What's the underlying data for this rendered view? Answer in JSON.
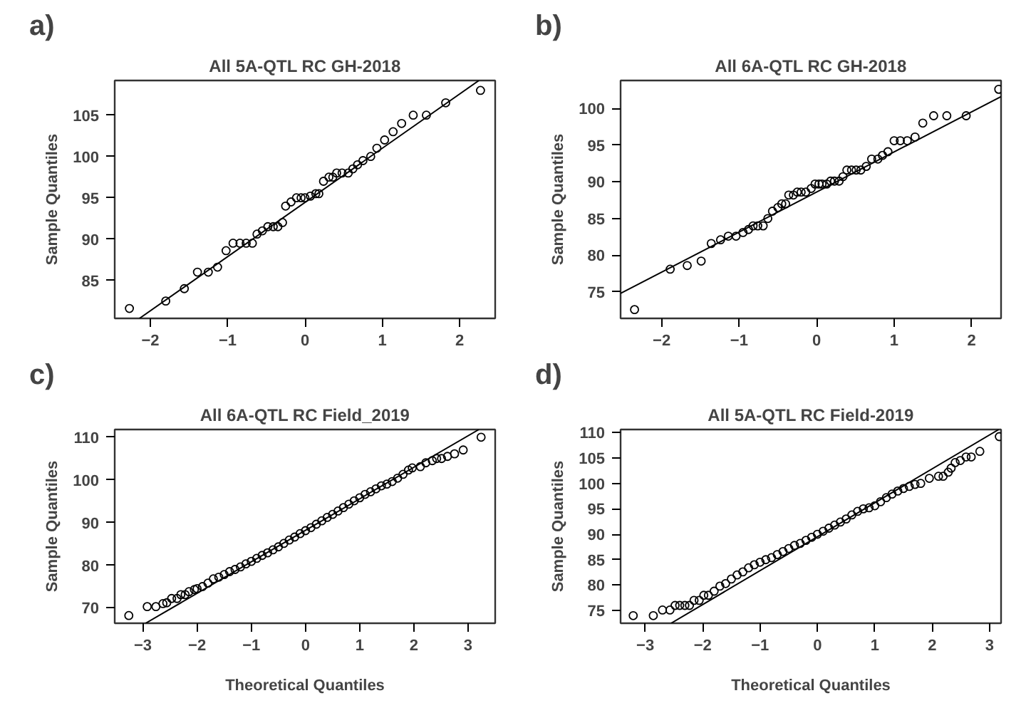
{
  "chart_data": [
    {
      "type": "scatter",
      "title": "All 5A-QTL RC GH-2018",
      "ylabel": "Sample Quantiles",
      "annotations": [
        "a)"
      ],
      "marker": "circle",
      "grid": false,
      "xlim": [
        -2.46,
        2.46
      ],
      "ylim": [
        80.4,
        109.2
      ],
      "xticks": [
        -2,
        -1,
        0,
        1,
        2
      ],
      "yticks": [
        85,
        90,
        95,
        100,
        105
      ],
      "series": [
        {
          "color": "#000000",
          "x": [
            -2.27,
            -1.8,
            -1.56,
            -1.39,
            -1.25,
            -1.13,
            -1.02,
            -0.93,
            -0.84,
            -0.76,
            -0.68,
            -0.62,
            -0.55,
            -0.48,
            -0.41,
            -0.35,
            -0.29,
            -0.25,
            -0.18,
            -0.11,
            -0.05,
            0,
            0.07,
            0.14,
            0.18,
            0.24,
            0.31,
            0.36,
            0.41,
            0.48,
            0.56,
            0.62,
            0.68,
            0.75,
            0.85,
            0.93,
            1.03,
            1.14,
            1.25,
            1.4,
            1.57,
            1.82,
            2.27
          ],
          "values": [
            81.6,
            82.5,
            84,
            86,
            86,
            86.6,
            88.6,
            89.5,
            89.5,
            89.5,
            89.5,
            90.6,
            91,
            91.5,
            91.5,
            91.5,
            92,
            94,
            94.5,
            95,
            95,
            95,
            95.2,
            95.5,
            95.5,
            97,
            97.5,
            97.5,
            98,
            98,
            98,
            98.5,
            99,
            99.5,
            100,
            101,
            102,
            103,
            104,
            105,
            105,
            106.5,
            108
          ]
        },
        {
          "type": "line",
          "marker": "none",
          "color": "#000000",
          "x": [
            -2.14,
            2.25
          ],
          "values": [
            80.4,
            109.2
          ]
        }
      ]
    },
    {
      "type": "scatter",
      "title": "All 6A-QTL RC GH-2018",
      "ylabel": "Sample Quantiles",
      "annotations": [
        "b)"
      ],
      "marker": "circle",
      "grid": false,
      "xlim": [
        -2.53,
        2.38
      ],
      "ylim": [
        71.4,
        103.8
      ],
      "xticks": [
        -2,
        -1,
        0,
        1,
        2
      ],
      "yticks": [
        75,
        80,
        85,
        90,
        95,
        100
      ],
      "series": [
        {
          "color": "#000000",
          "x": [
            -2.35,
            -1.89,
            -1.67,
            -1.49,
            -1.36,
            -1.24,
            -1.14,
            -1.04,
            -0.95,
            -0.88,
            -0.82,
            -0.76,
            -0.69,
            -0.63,
            -0.57,
            -0.5,
            -0.45,
            -0.4,
            -0.36,
            -0.3,
            -0.25,
            -0.2,
            -0.14,
            -0.07,
            -0.02,
            0.03,
            0.07,
            0.13,
            0.18,
            0.23,
            0.29,
            0.34,
            0.39,
            0.45,
            0.51,
            0.57,
            0.64,
            0.71,
            0.79,
            0.85,
            0.92,
            1.0,
            1.08,
            1.17,
            1.27,
            1.37,
            1.51,
            1.68,
            1.93,
            2.35
          ],
          "values": [
            72.6,
            78.1,
            78.6,
            79.2,
            81.6,
            82.1,
            82.6,
            82.6,
            83.1,
            83.5,
            84,
            84,
            84,
            85,
            86,
            86.5,
            87,
            87,
            88.2,
            88.2,
            88.6,
            88.6,
            88.6,
            89.1,
            89.7,
            89.7,
            89.7,
            89.7,
            90.1,
            90.1,
            90.1,
            90.7,
            91.6,
            91.6,
            91.6,
            91.6,
            92.1,
            93.1,
            93.1,
            93.6,
            94.1,
            95.6,
            95.6,
            95.6,
            96.1,
            98,
            99,
            99,
            99,
            102.6
          ]
        },
        {
          "type": "line",
          "marker": "none",
          "color": "#000000",
          "x": [
            -2.53,
            2.38
          ],
          "values": [
            74.8,
            101.6
          ]
        }
      ]
    },
    {
      "type": "scatter",
      "title": "All 6A-QTL RC Field_2019",
      "xlabel": "Theoretical Quantiles",
      "ylabel": "Sample Quantiles",
      "annotations": [
        "c)"
      ],
      "marker": "circle",
      "grid": false,
      "xlim": [
        -3.52,
        3.5
      ],
      "ylim": [
        66.4,
        111.8
      ],
      "xticks": [
        -3,
        -2,
        -1,
        0,
        1,
        2,
        3
      ],
      "yticks": [
        70,
        80,
        90,
        100,
        110
      ],
      "series": [
        {
          "color": "#000000",
          "x": [
            -3.26,
            -2.92,
            -2.76,
            -2.63,
            -2.56,
            -2.47,
            -2.37,
            -2.3,
            -2.22,
            -2.15,
            -2.05,
            -2.0,
            -1.9,
            -1.8,
            -1.7,
            -1.6,
            -1.5,
            -1.4,
            -1.3,
            -1.2,
            -1.1,
            -1.0,
            -0.9,
            -0.8,
            -0.7,
            -0.6,
            -0.5,
            -0.4,
            -0.3,
            -0.2,
            -0.1,
            0,
            0.1,
            0.2,
            0.3,
            0.4,
            0.5,
            0.6,
            0.7,
            0.8,
            0.9,
            1.0,
            1.1,
            1.2,
            1.3,
            1.4,
            1.5,
            1.6,
            1.7,
            1.8,
            1.9,
            1.97,
            2.12,
            2.22,
            2.34,
            2.42,
            2.51,
            2.62,
            2.75,
            2.91,
            3.24
          ],
          "values": [
            68.2,
            70.3,
            70.3,
            71,
            71.2,
            72.2,
            72.2,
            73.1,
            73.1,
            73.8,
            74.3,
            74.5,
            75,
            75.8,
            76.8,
            77.2,
            77.8,
            78.5,
            79,
            79.6,
            80.3,
            80.9,
            81.6,
            82.3,
            82.9,
            83.6,
            84.3,
            85.1,
            85.9,
            86.6,
            87.4,
            88.1,
            88.8,
            89.6,
            90.4,
            91.2,
            91.9,
            92.7,
            93.5,
            94.3,
            95.1,
            95.8,
            96.6,
            97.2,
            97.9,
            98.6,
            99,
            99.6,
            100.4,
            101.3,
            102.3,
            102.8,
            103.1,
            104,
            104.5,
            105,
            105,
            105.5,
            106.1,
            107,
            110
          ]
        },
        {
          "type": "line",
          "marker": "none",
          "color": "#000000",
          "x": [
            -2.95,
            3.2
          ],
          "values": [
            66.4,
            111.8
          ]
        }
      ]
    },
    {
      "type": "scatter",
      "title": "All 5A-QTL RC Field-2019",
      "xlabel": "Theoretical Quantiles",
      "ylabel": "Sample Quantiles",
      "annotations": [
        "d)"
      ],
      "marker": "circle",
      "grid": false,
      "xlim": [
        -3.43,
        3.2
      ],
      "ylim": [
        72.5,
        110.6
      ],
      "xticks": [
        -3,
        -2,
        -1,
        0,
        1,
        2,
        3
      ],
      "yticks": [
        75,
        80,
        85,
        90,
        95,
        100,
        105,
        110
      ],
      "series": [
        {
          "color": "#000000",
          "x": [
            -3.21,
            -2.86,
            -2.7,
            -2.57,
            -2.48,
            -2.4,
            -2.31,
            -2.23,
            -2.15,
            -2.06,
            -1.98,
            -1.9,
            -1.8,
            -1.7,
            -1.6,
            -1.5,
            -1.4,
            -1.3,
            -1.2,
            -1.1,
            -1.0,
            -0.9,
            -0.8,
            -0.7,
            -0.6,
            -0.5,
            -0.4,
            -0.3,
            -0.2,
            -0.1,
            0,
            0.1,
            0.2,
            0.3,
            0.4,
            0.5,
            0.6,
            0.7,
            0.8,
            0.9,
            1.0,
            1.1,
            1.2,
            1.3,
            1.4,
            1.5,
            1.6,
            1.7,
            1.8,
            1.95,
            2.11,
            2.19,
            2.28,
            2.33,
            2.4,
            2.49,
            2.59,
            2.68,
            2.83,
            3.17
          ],
          "values": [
            74,
            74,
            75.1,
            75.1,
            76,
            76,
            76,
            76,
            77,
            77,
            78,
            78,
            78.8,
            79.8,
            80.3,
            81.2,
            82,
            82.6,
            83.4,
            84,
            84.5,
            85,
            85.4,
            86,
            86.6,
            87.2,
            87.8,
            88.2,
            88.8,
            89.4,
            90,
            90.6,
            91.2,
            91.8,
            92.4,
            93,
            93.8,
            94.5,
            95,
            95.2,
            95.6,
            96.4,
            97.2,
            97.9,
            98.5,
            99,
            99.4,
            99.8,
            100,
            101,
            101.4,
            101.4,
            102.2,
            103,
            104.1,
            104.5,
            105.2,
            105.2,
            106.3,
            109.2
          ]
        },
        {
          "type": "line",
          "marker": "none",
          "color": "#000000",
          "x": [
            -2.55,
            3.16
          ],
          "values": [
            72.5,
            110.6
          ]
        }
      ]
    }
  ]
}
